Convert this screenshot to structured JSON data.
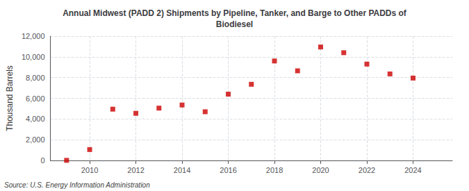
{
  "chart_data": {
    "type": "scatter",
    "title": "Annual Midwest (PADD 2) Shipments by Pipeline, Tanker, and Barge to Other PADDs of\nBiodiesel",
    "ylabel": "Thousand Barrels",
    "annotations": [
      "Source: U.S. Energy Information Administration"
    ],
    "x": [
      2009,
      2010,
      2011,
      2012,
      2013,
      2014,
      2015,
      2016,
      2017,
      2018,
      2019,
      2020,
      2021,
      2022,
      2023,
      2024
    ],
    "values": [
      10,
      1050,
      4950,
      4550,
      5050,
      5350,
      4700,
      6400,
      7350,
      9600,
      8650,
      10950,
      10400,
      9300,
      8350,
      7950
    ],
    "color": "#cc0000",
    "marker": "square",
    "xlim": [
      2008.3,
      2025.7
    ],
    "xticks": [
      2010,
      2012,
      2014,
      2016,
      2018,
      2020,
      2022,
      2024
    ],
    "ylim": [
      0,
      12000
    ],
    "yticks": [
      0,
      {
        "value": 2000,
        "label": "2,000"
      },
      {
        "value": 4000,
        "label": "4,000"
      },
      {
        "value": 6000,
        "label": "6,000"
      },
      {
        "value": 8000,
        "label": "8,000"
      },
      {
        "value": 10000,
        "label": "10,000"
      },
      {
        "value": 12000,
        "label": "12,000"
      }
    ],
    "grid": true
  }
}
